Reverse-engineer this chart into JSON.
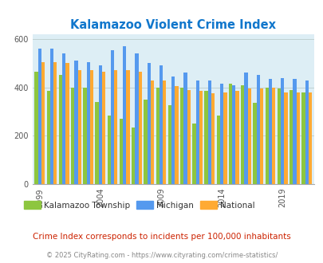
{
  "title": "Kalamazoo Violent Crime Index",
  "subtitle": "Crime Index corresponds to incidents per 100,000 inhabitants",
  "footer": "© 2025 CityRating.com - https://www.cityrating.com/crime-statistics/",
  "years": [
    1999,
    2000,
    2001,
    2002,
    2003,
    2004,
    2005,
    2006,
    2007,
    2008,
    2009,
    2010,
    2011,
    2012,
    2013,
    2014,
    2015,
    2016,
    2017,
    2018,
    2019,
    2020,
    2021
  ],
  "kalamazoo": [
    465,
    385,
    450,
    400,
    400,
    340,
    285,
    270,
    235,
    350,
    400,
    325,
    400,
    250,
    385,
    285,
    415,
    410,
    335,
    400,
    395,
    390,
    380
  ],
  "michigan": [
    560,
    560,
    540,
    510,
    505,
    490,
    555,
    570,
    540,
    500,
    490,
    445,
    460,
    430,
    430,
    415,
    410,
    460,
    450,
    435,
    440,
    435,
    430
  ],
  "national": [
    505,
    505,
    500,
    470,
    470,
    465,
    470,
    470,
    465,
    430,
    430,
    405,
    390,
    385,
    375,
    380,
    385,
    395,
    395,
    400,
    380,
    380,
    380
  ],
  "legend": [
    "Kalamazoo Township",
    "Michigan",
    "National"
  ],
  "colors": {
    "kalamazoo": "#8dc63f",
    "michigan": "#5599ee",
    "national": "#ffaa33"
  },
  "bar_bg": "#ddeef5",
  "title_color": "#1177cc",
  "subtitle_color": "#cc2200",
  "footer_color": "#888888",
  "ylim": [
    0,
    620
  ],
  "yticks": [
    0,
    200,
    400,
    600
  ],
  "xlabel_years": [
    1999,
    2004,
    2009,
    2014,
    2019
  ]
}
